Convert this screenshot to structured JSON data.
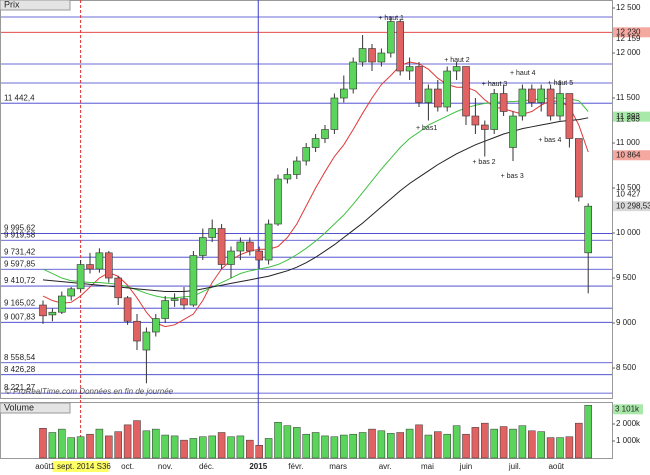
{
  "chart_data": {
    "type": "candlestick",
    "panel_title": "Prix",
    "footer": "© ProRealTime.com  Données en fin de journée",
    "ylim": [
      8167,
      12589
    ],
    "yticks": [
      {
        "value": 12500,
        "label": "12 500"
      },
      {
        "value": 12000,
        "label": "12 000"
      },
      {
        "value": 11500,
        "label": "11 500"
      },
      {
        "value": 11000,
        "label": "11 000"
      },
      {
        "value": 10500,
        "label": "10 500"
      },
      {
        "value": 10000,
        "label": "10 000"
      },
      {
        "value": 9500,
        "label": "9 500"
      },
      {
        "value": 9000,
        "label": "9 000"
      },
      {
        "value": 8500,
        "label": "8 500"
      }
    ],
    "up_color": "#5ad45a",
    "down_color": "#e06262",
    "open": [
      9200,
      9090,
      9120,
      9300,
      9380,
      9650,
      9600,
      9780,
      9500,
      9280,
      9020,
      8700,
      8900,
      9050,
      9250,
      9270,
      9200,
      9750,
      9950,
      10050,
      9650,
      9800,
      9900,
      9800,
      9700,
      10100,
      10600,
      10650,
      10800,
      10950,
      11050,
      11150,
      11500,
      11600,
      11900,
      12050,
      11900,
      12000,
      12350,
      11800,
      11850,
      11450,
      11600,
      11400,
      11800,
      11850,
      11300,
      11200,
      11150,
      11550,
      10950,
      11300,
      11600,
      11450,
      11600,
      11300,
      11550,
      11050,
      9780
    ],
    "high": [
      9250,
      9160,
      9350,
      9400,
      9700,
      9780,
      9830,
      9800,
      9520,
      9300,
      9100,
      8950,
      9100,
      9300,
      9330,
      9400,
      9800,
      10050,
      10150,
      10100,
      9850,
      9950,
      9950,
      9850,
      10150,
      10650,
      10720,
      10850,
      11000,
      11100,
      11200,
      11550,
      11750,
      11950,
      12200,
      12100,
      12050,
      12390,
      12380,
      11950,
      11900,
      11650,
      11700,
      11850,
      11900,
      11850,
      11500,
      11250,
      11600,
      11650,
      11350,
      11650,
      11650,
      11650,
      11650,
      11700,
      11550,
      11050,
      10330
    ],
    "low": [
      8990,
      9020,
      9100,
      9250,
      9350,
      9550,
      9560,
      9450,
      9200,
      8980,
      8700,
      8330,
      8850,
      9000,
      9180,
      9150,
      9180,
      9700,
      9900,
      9600,
      9500,
      9700,
      9750,
      9600,
      9650,
      10080,
      10550,
      10600,
      10750,
      10900,
      11000,
      11100,
      11450,
      11550,
      11850,
      11800,
      11850,
      11950,
      11750,
      11700,
      11400,
      11250,
      11350,
      11350,
      11700,
      11200,
      11100,
      10850,
      11100,
      11300,
      10800,
      11250,
      11400,
      11350,
      11250,
      11250,
      10950,
      10350,
      9330
    ],
    "close": [
      9080,
      9120,
      9300,
      9380,
      9650,
      9600,
      9780,
      9500,
      9280,
      9020,
      8800,
      8900,
      9050,
      9250,
      9270,
      9200,
      9750,
      9950,
      10050,
      9650,
      9800,
      9900,
      9800,
      9700,
      10100,
      10600,
      10650,
      10800,
      10950,
      11050,
      11150,
      11500,
      11600,
      11900,
      12050,
      11900,
      12000,
      12350,
      11800,
      11850,
      11450,
      11600,
      11400,
      11800,
      11850,
      11300,
      11200,
      11150,
      11550,
      11350,
      11300,
      11600,
      11450,
      11600,
      11300,
      11550,
      11050,
      10400,
      10298.53
    ],
    "lines": [
      {
        "color": "#e03a3a",
        "values": [
          9300,
          9250,
          9220,
          9230,
          9300,
          9400,
          9500,
          9560,
          9520,
          9420,
          9280,
          9120,
          9000,
          8960,
          8980,
          9040,
          9100,
          9250,
          9450,
          9600,
          9700,
          9760,
          9800,
          9820,
          9820,
          9850,
          9950,
          10100,
          10300,
          10500,
          10680,
          10850,
          10980,
          11150,
          11330,
          11500,
          11650,
          11750,
          11860,
          11900,
          11880,
          11820,
          11720,
          11650,
          11620,
          11620,
          11580,
          11480,
          11400,
          11380,
          11350,
          11320,
          11350,
          11420,
          11470,
          11460,
          11400,
          11200,
          10900
        ]
      },
      {
        "color": "#40c040",
        "values": [
          9600,
          9550,
          9500,
          9470,
          9460,
          9450,
          9450,
          9440,
          9430,
          9400,
          9370,
          9330,
          9300,
          9280,
          9280,
          9290,
          9300,
          9350,
          9400,
          9450,
          9500,
          9550,
          9580,
          9600,
          9620,
          9650,
          9700,
          9760,
          9830,
          9910,
          10000,
          10100,
          10200,
          10320,
          10450,
          10580,
          10710,
          10830,
          10950,
          11050,
          11120,
          11200,
          11250,
          11300,
          11350,
          11390,
          11420,
          11440,
          11450,
          11460,
          11460,
          11470,
          11480,
          11490,
          11500,
          11500,
          11490,
          11470,
          11350
        ]
      },
      {
        "color": "#222222",
        "values": [
          9480,
          9470,
          9460,
          9450,
          9440,
          9430,
          9420,
          9410,
          9400,
          9390,
          9380,
          9370,
          9360,
          9350,
          9350,
          9350,
          9360,
          9380,
          9400,
          9420,
          9440,
          9460,
          9480,
          9500,
          9520,
          9550,
          9580,
          9620,
          9670,
          9730,
          9800,
          9870,
          9950,
          10030,
          10110,
          10200,
          10290,
          10380,
          10470,
          10550,
          10620,
          10690,
          10760,
          10820,
          10880,
          10930,
          10980,
          11020,
          11060,
          11100,
          11130,
          11160,
          11180,
          11200,
          11220,
          11240,
          11250,
          11260,
          11280
        ]
      }
    ],
    "levels": [
      {
        "value": 12400,
        "color": "#3a3acc"
      },
      {
        "value": 12230,
        "color": "#e03030"
      },
      {
        "value": 11878,
        "color": "#3a3acc"
      },
      {
        "value": 11667,
        "color": "#3a3acc"
      },
      {
        "value": 11442.4,
        "label": "11 442,4",
        "color": "#3a3acc"
      },
      {
        "value": 9995.62,
        "label": "9 995,62",
        "color": "#3a3acc"
      },
      {
        "value": 9919.58,
        "label": "9 919,58",
        "color": "#3a3acc"
      },
      {
        "value": 9731.42,
        "label": "9 731,42",
        "color": "#3a3acc"
      },
      {
        "value": 9597.85,
        "label": "9 597,85",
        "color": "#3a3acc"
      },
      {
        "value": 9410.72,
        "label": "9 410,72",
        "color": "#3a3acc"
      },
      {
        "value": 9165.02,
        "label": "9 165,02",
        "color": "#3a3acc"
      },
      {
        "value": 9007.83,
        "label": "9 007,83",
        "color": "#3a3acc"
      },
      {
        "value": 8558.54,
        "label": "8 558,54",
        "color": "#3a3acc"
      },
      {
        "value": 8426.28,
        "label": "8 426,28",
        "color": "#3a3acc"
      },
      {
        "value": 8221.27,
        "label": "8 221,27",
        "color": "#3a3acc"
      }
    ],
    "markers": [
      {
        "value": 12230,
        "label": "12 230",
        "color": "#f4a8a0"
      },
      {
        "value": 12159,
        "label": "12 159"
      },
      {
        "value": 11293,
        "label": "11 293",
        "color": "#a8e8a8"
      },
      {
        "value": 11265,
        "label": "11 265"
      },
      {
        "value": 10864,
        "label": "10 864",
        "color": "#f4a8a0"
      },
      {
        "value": 10427,
        "label": "10 427"
      },
      {
        "value": 10298.53,
        "label": "10 298,53",
        "color": "#d8d8d8"
      }
    ],
    "annotations": [
      {
        "label": "+ haut 1",
        "candle": 36,
        "value": 12389
      },
      {
        "label": "+ haut 2",
        "candle": 43,
        "value": 11922
      },
      {
        "label": "+ haut 3",
        "candle": 47,
        "value": 11656
      },
      {
        "label": "+ haut 4",
        "candle": 50,
        "value": 11778
      },
      {
        "label": "+ haut 5",
        "candle": 54,
        "value": 11667
      },
      {
        "label": "+ bas1",
        "candle": 40,
        "value": 11167
      },
      {
        "label": "+ bas 2",
        "candle": 46,
        "value": 10789
      },
      {
        "label": "+ bas 3",
        "candle": 49,
        "value": 10633
      },
      {
        "label": "+ bas 4",
        "candle": 53,
        "value": 11033
      }
    ],
    "x_labels": [
      {
        "candle": 0,
        "label": "août"
      },
      {
        "candle": 4,
        "label": "1 sept. 2014 S36",
        "highlighted": true
      },
      {
        "candle": 9,
        "label": "oct."
      },
      {
        "candle": 13,
        "label": "nov."
      },
      {
        "candle": 17.4,
        "label": "déc."
      },
      {
        "candle": 22.9,
        "label": "2015",
        "bold": true
      },
      {
        "candle": 26.9,
        "label": "févr."
      },
      {
        "candle": 31.4,
        "label": "mars"
      },
      {
        "candle": 36.4,
        "label": "avr."
      },
      {
        "candle": 40.9,
        "label": "mai"
      },
      {
        "candle": 45,
        "label": "juin"
      },
      {
        "candle": 50.2,
        "label": "juil."
      },
      {
        "candle": 54.6,
        "label": "août"
      }
    ],
    "volume": {
      "title": "Volume",
      "ylim": [
        0,
        3294
      ],
      "yticks": [
        {
          "value": 1000,
          "label": "1 000k"
        },
        {
          "value": 2000,
          "label": "2 000k"
        }
      ],
      "values": [
        1750,
        1500,
        1700,
        1200,
        1250,
        1400,
        1700,
        1300,
        1550,
        1950,
        2200,
        1600,
        1700,
        1350,
        1300,
        1050,
        1150,
        1250,
        1300,
        1500,
        1250,
        1300,
        1050,
        750,
        1150,
        2100,
        1900,
        1800,
        1400,
        1500,
        1300,
        1250,
        1350,
        1400,
        1500,
        1700,
        1600,
        1450,
        1500,
        1700,
        1950,
        1350,
        1550,
        1400,
        1900,
        1400,
        1800,
        2050,
        1700,
        1850,
        1700,
        1900,
        1600,
        1550,
        1200,
        1200,
        1250,
        2050,
        3101
      ],
      "value_labels": [
        null,
        null,
        null,
        null,
        null,
        null,
        null,
        null,
        null,
        null,
        null,
        null,
        null,
        null,
        null,
        null,
        null,
        null,
        null,
        null,
        null,
        null,
        null,
        null,
        null,
        null,
        null,
        null,
        null,
        null,
        null,
        null,
        null,
        null,
        null,
        null,
        null,
        null,
        null,
        null,
        null,
        null,
        null,
        null,
        null,
        null,
        null,
        null,
        null,
        null,
        null,
        null,
        null,
        null,
        null,
        null,
        null,
        null,
        "3 101k"
      ]
    }
  }
}
